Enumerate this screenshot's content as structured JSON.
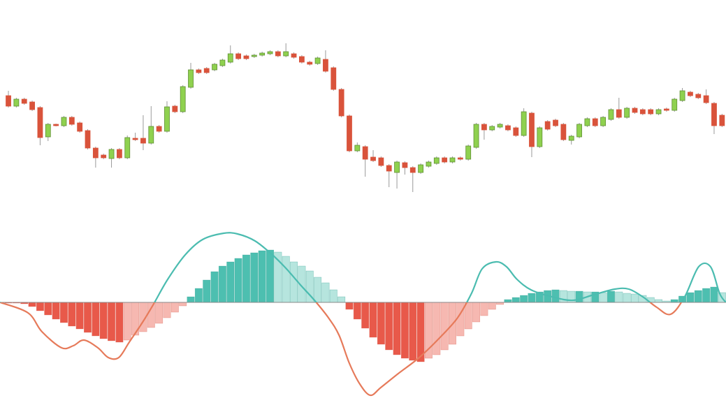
{
  "chart_data": [
    {
      "type": "candlestick",
      "xlim": [
        -0.06,
        91.5
      ],
      "ylim": [
        0,
        300
      ],
      "up_color": "#8fd14f",
      "down_color": "#d9533b",
      "wick_color": "#9a9a9a",
      "open": [
        163,
        148,
        158,
        154,
        146,
        104,
        122,
        120,
        132,
        124,
        113,
        88,
        78,
        73,
        86,
        74,
        102,
        102,
        95,
        119,
        112,
        148,
        140,
        175,
        200,
        202,
        200,
        206,
        211,
        223,
        220,
        219,
        221,
        223,
        226,
        220,
        223,
        219,
        211,
        209,
        215,
        203,
        172,
        134,
        84,
        90,
        75,
        74,
        63,
        53,
        67,
        60,
        53,
        62,
        66,
        74,
        68,
        74,
        72,
        89,
        122,
        114,
        118,
        120,
        117,
        106,
        138,
        90,
        126,
        128,
        122,
        99,
        104,
        120,
        130,
        120,
        129,
        143,
        132,
        145,
        143,
        143,
        137,
        144,
        142,
        156,
        168,
        165,
        163,
        152,
        135
      ],
      "high": [
        170,
        160,
        160,
        156,
        148,
        124,
        123,
        134,
        134,
        126,
        115,
        90,
        80,
        88,
        88,
        106,
        110,
        135,
        148,
        121,
        155,
        150,
        178,
        210,
        202,
        204,
        210,
        216,
        235,
        225,
        222,
        223,
        226,
        228,
        228,
        238,
        225,
        221,
        213,
        219,
        228,
        205,
        174,
        136,
        96,
        92,
        85,
        76,
        65,
        70,
        69,
        62,
        66,
        70,
        76,
        76,
        76,
        76,
        93,
        124,
        124,
        121,
        124,
        122,
        119,
        145,
        140,
        119,
        128,
        130,
        124,
        107,
        124,
        132,
        132,
        134,
        145,
        160,
        147,
        147,
        145,
        145,
        145,
        146,
        160,
        174,
        170,
        167,
        172,
        154,
        137
      ],
      "low": [
        146,
        146,
        150,
        141,
        92,
        98,
        119,
        118,
        120,
        110,
        86,
        60,
        72,
        60,
        72,
        72,
        98,
        85,
        93,
        110,
        110,
        138,
        138,
        173,
        194,
        194,
        198,
        204,
        209,
        214,
        214,
        217,
        219,
        221,
        218,
        218,
        216,
        209,
        206,
        207,
        196,
        170,
        132,
        82,
        82,
        47,
        68,
        61,
        32,
        30,
        50,
        25,
        51,
        60,
        64,
        66,
        66,
        70,
        70,
        87,
        100,
        112,
        116,
        112,
        104,
        104,
        75,
        88,
        113,
        118,
        98,
        93,
        102,
        118,
        118,
        118,
        127,
        130,
        130,
        137,
        135,
        135,
        135,
        140,
        140,
        154,
        161,
        158,
        151,
        108,
        118
      ],
      "close": [
        148,
        158,
        152,
        143,
        103,
        122,
        120,
        132,
        122,
        112,
        88,
        74,
        74,
        86,
        74,
        103,
        100,
        95,
        119,
        112,
        147,
        140,
        176,
        200,
        196,
        196,
        208,
        214,
        223,
        216,
        216,
        221,
        224,
        226,
        220,
        226,
        218,
        211,
        208,
        217,
        198,
        172,
        134,
        84,
        92,
        72,
        70,
        63,
        55,
        68,
        60,
        53,
        64,
        68,
        74,
        68,
        74,
        72,
        91,
        122,
        114,
        119,
        122,
        114,
        106,
        140,
        90,
        117,
        115,
        120,
        100,
        105,
        122,
        130,
        120,
        132,
        143,
        132,
        145,
        139,
        137,
        137,
        143,
        142,
        158,
        170,
        163,
        160,
        153,
        120,
        120
      ]
    },
    {
      "type": "macd",
      "xlim": [
        -0.06,
        91.5
      ],
      "ylim": [
        -150,
        150
      ],
      "colors": {
        "rising_positive": "#4dbfb0",
        "falling_positive": "#b6e5de",
        "falling_negative": "#e8594a",
        "rising_negative": "#f6b8b1",
        "line_positive": "#4bbcb0",
        "line_negative": "#e67a5a",
        "zero_line": "#8a8a8a"
      },
      "histogram": [
        -1,
        -1,
        -2,
        -6,
        -12,
        -18,
        -24,
        -29,
        -34,
        -38,
        -43,
        -48,
        -52,
        -55,
        -57,
        -54,
        -47,
        -42,
        -36,
        -30,
        -22,
        -14,
        -5,
        8,
        20,
        32,
        44,
        52,
        58,
        63,
        68,
        71,
        74,
        75,
        72,
        66,
        58,
        52,
        45,
        36,
        28,
        18,
        8,
        -10,
        -24,
        -37,
        -50,
        -60,
        -68,
        -75,
        -80,
        -83,
        -85,
        -80,
        -75,
        -68,
        -60,
        -48,
        -38,
        -28,
        -19,
        -10,
        -3,
        4,
        7,
        10,
        13,
        15,
        17,
        18,
        17,
        16,
        16,
        15,
        15,
        14,
        16,
        15,
        13,
        12,
        10,
        7,
        4,
        2,
        4,
        9,
        14,
        17,
        20,
        22,
        14
      ],
      "line_x": [
        -0.06,
        3.47,
        5.23,
        7.7,
        9.19,
        10.52,
        12.28,
        13.6,
        14.92,
        16.24,
        18.0,
        19.33,
        21.09,
        23.29,
        25.49,
        28.14,
        29.9,
        32.1,
        34.3,
        36.07,
        37.83,
        39.6,
        41.36,
        42.7,
        43.99,
        45.32,
        46.64,
        47.96,
        50.16,
        52.81,
        55.45,
        57.65,
        59.41,
        60.74,
        62.5,
        63.82,
        65.14,
        66.9,
        69.55,
        72.19,
        74.83,
        77.48,
        79.24,
        81.0,
        82.76,
        84.52,
        86.29,
        88.05,
        89.55,
        90.69,
        91.48
      ],
      "line_values": [
        0,
        -15,
        -42,
        -65,
        -62,
        -54,
        -65,
        -79,
        -79,
        -57,
        -27,
        -2,
        33,
        68,
        90,
        99,
        98,
        88,
        68,
        48,
        25,
        3,
        -22,
        -47,
        -87,
        -117,
        -133,
        -122,
        -102,
        -79,
        -50,
        -22,
        13,
        48,
        58,
        51,
        33,
        18,
        8,
        3,
        11,
        19,
        19,
        8,
        -7,
        -17,
        8,
        51,
        51,
        13,
        0
      ]
    }
  ]
}
